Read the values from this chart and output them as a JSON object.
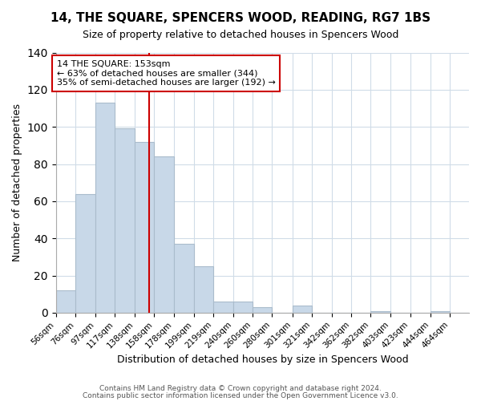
{
  "title": "14, THE SQUARE, SPENCERS WOOD, READING, RG7 1BS",
  "subtitle": "Size of property relative to detached houses in Spencers Wood",
  "xlabel": "Distribution of detached houses by size in Spencers Wood",
  "ylabel": "Number of detached properties",
  "bar_edges": [
    56,
    76,
    97,
    117,
    138,
    158,
    178,
    199,
    219,
    240,
    260,
    280,
    301,
    321,
    342,
    362,
    382,
    403,
    423,
    444,
    464,
    484
  ],
  "bar_heights": [
    12,
    64,
    113,
    99,
    92,
    84,
    37,
    25,
    6,
    6,
    3,
    0,
    4,
    0,
    0,
    0,
    1,
    0,
    0,
    1,
    0
  ],
  "bar_color": "#c8d8e8",
  "bar_edge_color": "#aabccc",
  "vline_x": 153,
  "vline_color": "#cc0000",
  "ylim": [
    0,
    140
  ],
  "yticks": [
    0,
    20,
    40,
    60,
    80,
    100,
    120,
    140
  ],
  "tick_labels": [
    "56sqm",
    "76sqm",
    "97sqm",
    "117sqm",
    "138sqm",
    "158sqm",
    "178sqm",
    "199sqm",
    "219sqm",
    "240sqm",
    "260sqm",
    "280sqm",
    "301sqm",
    "321sqm",
    "342sqm",
    "362sqm",
    "382sqm",
    "403sqm",
    "423sqm",
    "444sqm",
    "464sqm"
  ],
  "annotation_title": "14 THE SQUARE: 153sqm",
  "annotation_line1": "← 63% of detached houses are smaller (344)",
  "annotation_line2": "35% of semi-detached houses are larger (192) →",
  "annotation_box_color": "#ffffff",
  "annotation_box_edge": "#cc0000",
  "footer1": "Contains HM Land Registry data © Crown copyright and database right 2024.",
  "footer2": "Contains public sector information licensed under the Open Government Licence v3.0.",
  "background_color": "#ffffff",
  "grid_color": "#d0dce8"
}
